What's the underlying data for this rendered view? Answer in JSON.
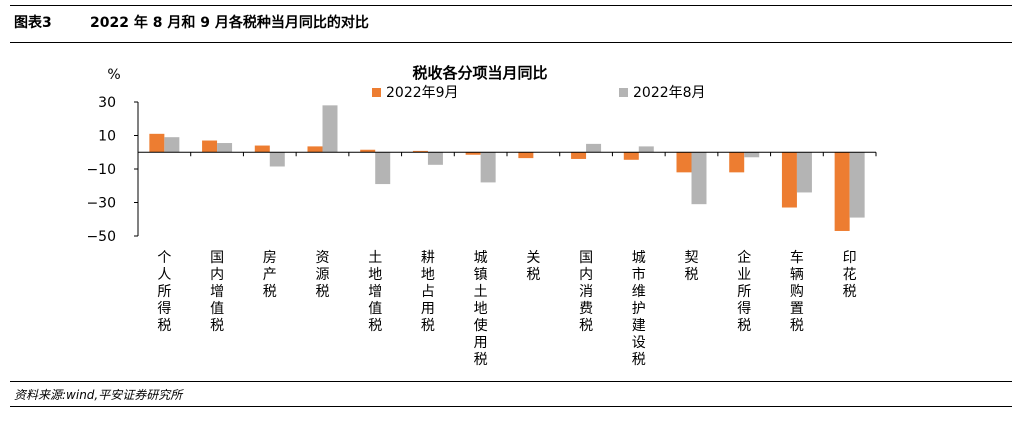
{
  "header": {
    "figure_number": "图表3",
    "figure_title": "2022 年 8 月和 9 月各税种当月同比的对比"
  },
  "source_note": "资料来源:wind,平安证券研究所",
  "colors": {
    "sep2022": "#ED7D31",
    "aug2022": "#B4B4B4",
    "axis": "#000000"
  },
  "chart_data": {
    "type": "bar",
    "title": "税收各分项当月同比",
    "ylabel": "%",
    "ylim": [
      -50,
      30
    ],
    "yticks": [
      30,
      10,
      -10,
      -30,
      -50
    ],
    "ytick_labels": [
      "30",
      "10",
      "−10",
      "−30",
      "−50"
    ],
    "grid": false,
    "legend_position": "top",
    "categories": [
      "个人所得税",
      "国内增值税",
      "房产税",
      "资源税",
      "土地增值税",
      "耕地占用税",
      "城镇土地使用税",
      "关税",
      "国内消费税",
      "城市维护建设税",
      "契税",
      "企业所得税",
      "车辆购置税",
      "印花税"
    ],
    "series": [
      {
        "name": "2022年9月",
        "color": "#ED7D31",
        "values": [
          11,
          7,
          4,
          3.5,
          1.5,
          0.8,
          -1.5,
          -3.5,
          -4,
          -4.5,
          -12,
          -12,
          -33,
          -47
        ]
      },
      {
        "name": "2022年8月",
        "color": "#B4B4B4",
        "values": [
          9,
          5.5,
          -8.5,
          28,
          -19,
          -7.5,
          -18,
          0,
          5,
          3.5,
          -31,
          -3,
          -24,
          -39
        ]
      }
    ]
  }
}
